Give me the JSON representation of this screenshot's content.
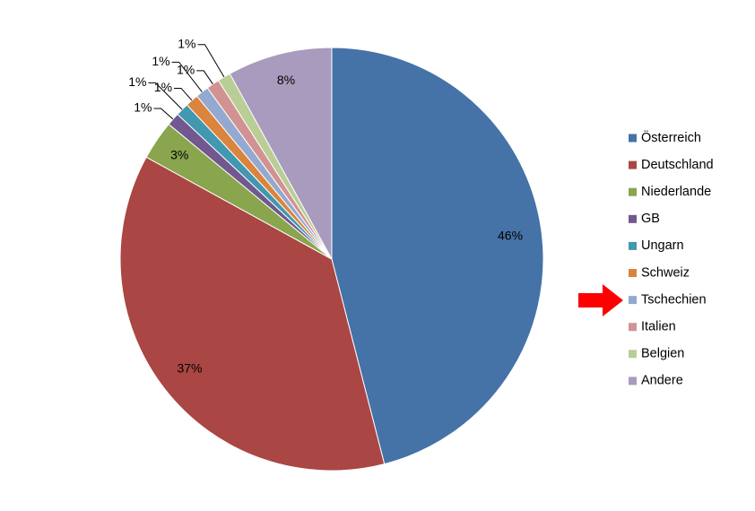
{
  "chart_data": {
    "type": "pie",
    "categories": [
      "Österreich",
      "Deutschland",
      "Niederlande",
      "GB",
      "Ungarn",
      "Schweiz",
      "Tschechien",
      "Italien",
      "Belgien",
      "Andere"
    ],
    "values": [
      46,
      37,
      3,
      1,
      1,
      1,
      1,
      1,
      1,
      8
    ],
    "value_labels": [
      "46%",
      "37%",
      "3%",
      "1%",
      "1%",
      "1%",
      "1%",
      "1%",
      "1%",
      "8%"
    ],
    "colors": [
      "#4572a7",
      "#aa4643",
      "#89a54e",
      "#71588f",
      "#4198af",
      "#db843d",
      "#93a9cf",
      "#d19392",
      "#b9cd96",
      "#a99bbd"
    ],
    "legend": "right"
  }
}
